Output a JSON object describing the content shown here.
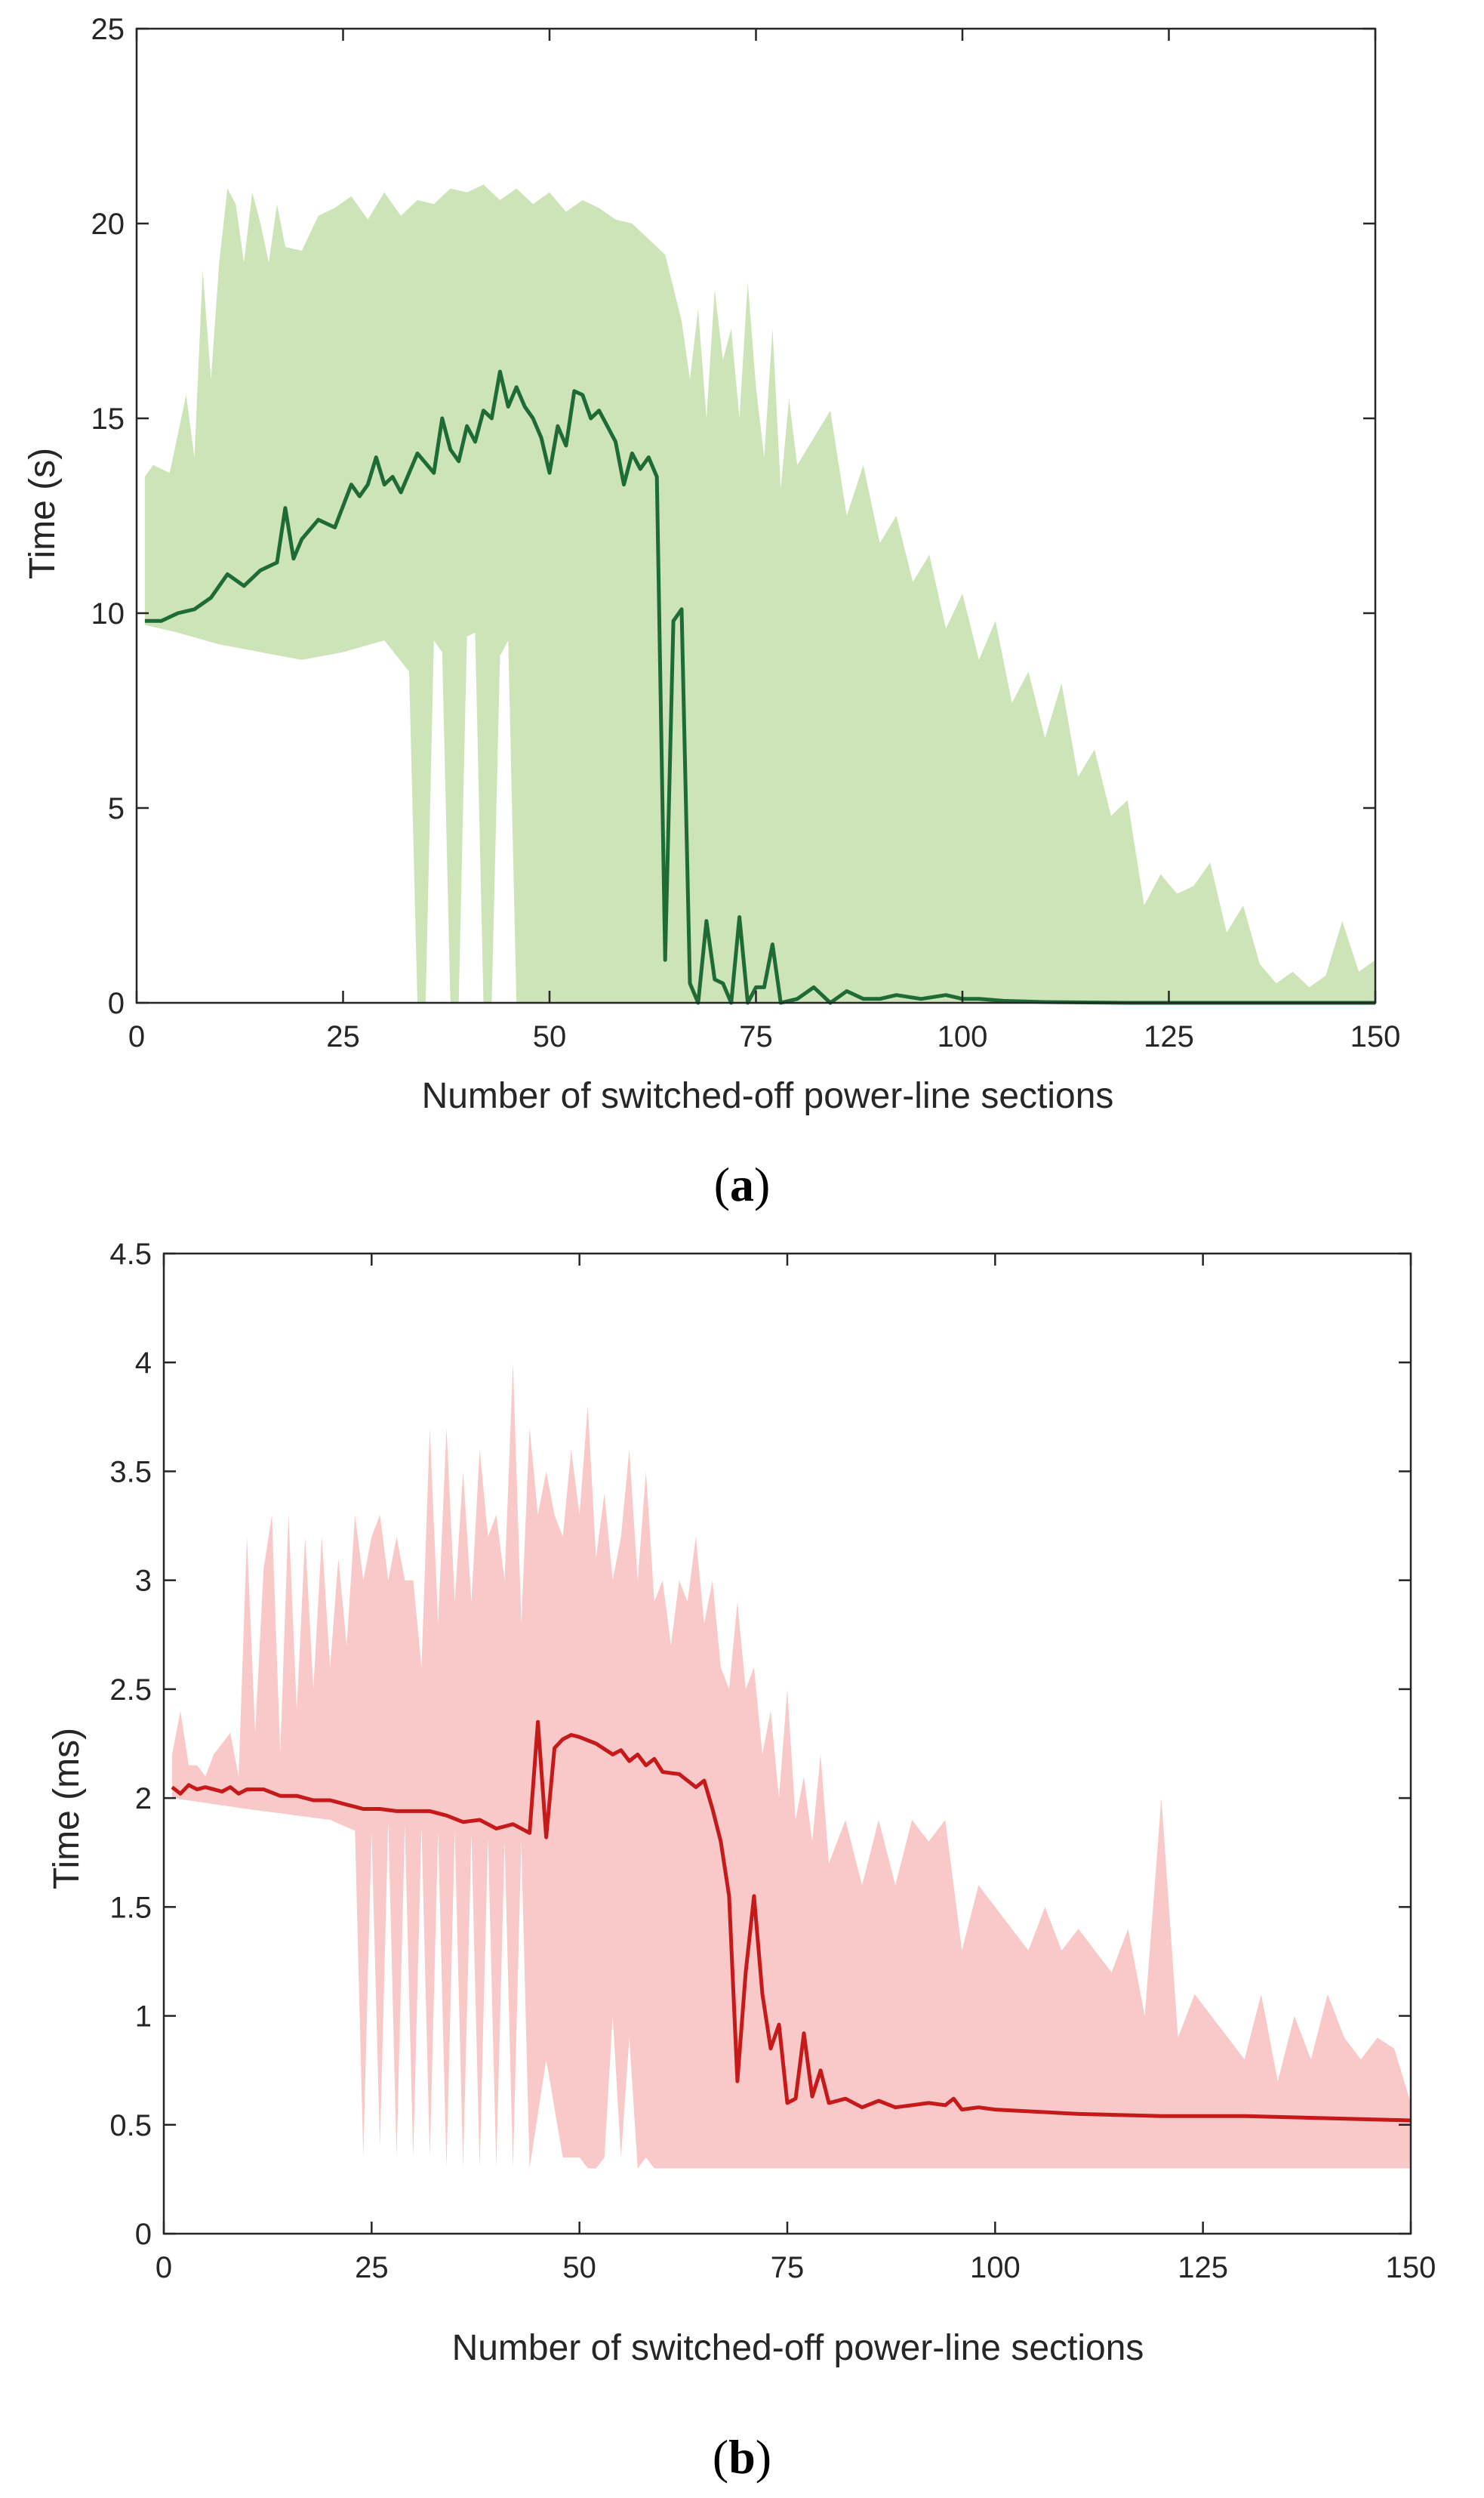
{
  "chart_data": [
    {
      "type": "area",
      "panel_label": "a",
      "xlabel": "Number of switched-off power-line sections",
      "ylabel": "Time (s)",
      "xlim": [
        0,
        150
      ],
      "ylim": [
        0,
        25
      ],
      "xticks": [
        0,
        25,
        50,
        75,
        100,
        125,
        150
      ],
      "yticks": [
        0,
        5,
        10,
        15,
        20,
        25
      ],
      "grid": false,
      "colors": {
        "band": "#cde3b8",
        "line": "#1e6b35"
      },
      "series": [
        {
          "name": "mean",
          "x": [
            1,
            3,
            5,
            7,
            9,
            11,
            13,
            15,
            17,
            18,
            19,
            20,
            22,
            24,
            26,
            27,
            28,
            29,
            30,
            31,
            32,
            34,
            36,
            37,
            38,
            39,
            40,
            41,
            42,
            43,
            44,
            45,
            46,
            47,
            48,
            49,
            50,
            51,
            52,
            53,
            54,
            55,
            56,
            57,
            58,
            59,
            60,
            61,
            62,
            63,
            64,
            65,
            66,
            67,
            68,
            69,
            70,
            71,
            72,
            73,
            74,
            75,
            76,
            77,
            78,
            80,
            82,
            84,
            86,
            88,
            90,
            92,
            95,
            98,
            100,
            102,
            105,
            110,
            120,
            130,
            140,
            150
          ],
          "values": [
            9.8,
            9.8,
            10.0,
            10.1,
            10.4,
            11.0,
            10.7,
            11.1,
            11.3,
            12.7,
            11.4,
            11.9,
            12.4,
            12.2,
            13.3,
            13.0,
            13.3,
            14.0,
            13.3,
            13.5,
            13.1,
            14.1,
            13.6,
            15.0,
            14.2,
            13.9,
            14.8,
            14.4,
            15.2,
            15.0,
            16.2,
            15.3,
            15.8,
            15.3,
            15.0,
            14.5,
            13.6,
            14.8,
            14.3,
            15.7,
            15.6,
            15.0,
            15.2,
            14.8,
            14.4,
            13.3,
            14.1,
            13.7,
            14.0,
            13.5,
            1.1,
            9.8,
            10.1,
            0.5,
            0.0,
            2.1,
            0.6,
            0.5,
            0.0,
            2.2,
            0.0,
            0.4,
            0.4,
            1.5,
            0.0,
            0.1,
            0.4,
            0.0,
            0.3,
            0.1,
            0.1,
            0.2,
            0.1,
            0.2,
            0.1,
            0.1,
            0.05,
            0.02,
            0.0,
            0.0,
            0.0,
            0.0
          ]
        },
        {
          "name": "upper",
          "x": [
            1,
            2,
            4,
            6,
            7,
            8,
            9,
            10,
            11,
            12,
            13,
            14,
            15,
            16,
            17,
            18,
            20,
            22,
            24,
            26,
            28,
            30,
            32,
            34,
            36,
            38,
            40,
            42,
            44,
            46,
            48,
            50,
            52,
            54,
            56,
            58,
            60,
            62,
            64,
            66,
            67,
            68,
            69,
            70,
            71,
            72,
            73,
            74,
            75,
            76,
            77,
            78,
            79,
            80,
            82,
            84,
            86,
            88,
            90,
            92,
            94,
            96,
            98,
            100,
            102,
            104,
            106,
            108,
            110,
            112,
            114,
            116,
            118,
            120,
            122,
            124,
            126,
            128,
            130,
            132,
            134,
            136,
            138,
            140,
            142,
            144,
            146,
            148,
            150
          ],
          "values": [
            13.5,
            13.8,
            13.6,
            15.6,
            14.0,
            18.8,
            16.0,
            19.0,
            20.9,
            20.5,
            19.0,
            20.8,
            20.0,
            19.0,
            20.5,
            19.4,
            19.3,
            20.2,
            20.4,
            20.7,
            20.1,
            20.8,
            20.2,
            20.6,
            20.5,
            20.9,
            20.8,
            21.0,
            20.6,
            20.9,
            20.5,
            20.8,
            20.3,
            20.6,
            20.4,
            20.1,
            20.0,
            19.6,
            19.2,
            17.5,
            16.0,
            17.8,
            15.0,
            18.3,
            16.5,
            17.3,
            15.0,
            18.5,
            15.8,
            14.0,
            17.3,
            13.2,
            15.5,
            13.8,
            14.5,
            15.2,
            12.5,
            13.8,
            11.8,
            12.5,
            10.8,
            11.5,
            9.6,
            10.5,
            8.8,
            9.8,
            7.7,
            8.5,
            6.8,
            8.2,
            5.8,
            6.5,
            4.8,
            5.2,
            2.5,
            3.3,
            2.8,
            3.0,
            3.6,
            1.8,
            2.5,
            1.0,
            0.5,
            0.8,
            0.4,
            0.7,
            2.1,
            0.8,
            1.1
          ]
        },
        {
          "name": "lower",
          "x": [
            1,
            5,
            10,
            15,
            20,
            25,
            30,
            33,
            34,
            35,
            36,
            37,
            38,
            39,
            40,
            41,
            42,
            43,
            44,
            45,
            46,
            47,
            150
          ],
          "values": [
            9.7,
            9.5,
            9.2,
            9.0,
            8.8,
            9.0,
            9.3,
            8.5,
            0.0,
            0.0,
            9.3,
            9.0,
            0.0,
            0.0,
            9.4,
            9.5,
            0.0,
            0.0,
            8.9,
            9.3,
            0.0,
            0.0,
            0.0
          ]
        }
      ]
    },
    {
      "type": "area",
      "panel_label": "b",
      "xlabel": "Number of switched-off power-line sections",
      "ylabel": "Time (ms)",
      "xlim": [
        0,
        150
      ],
      "ylim": [
        0,
        4.5
      ],
      "xticks": [
        0,
        25,
        50,
        75,
        100,
        125,
        150
      ],
      "yticks": [
        0,
        0.5,
        1,
        1.5,
        2,
        2.5,
        3,
        3.5,
        4,
        4.5
      ],
      "grid": false,
      "colors": {
        "band": "#f9c8c8",
        "line": "#c61a1a"
      },
      "series": [
        {
          "name": "mean",
          "x": [
            1,
            2,
            3,
            4,
            5,
            6,
            7,
            8,
            9,
            10,
            12,
            14,
            16,
            18,
            20,
            22,
            24,
            26,
            28,
            30,
            32,
            34,
            36,
            38,
            40,
            42,
            44,
            45,
            46,
            47,
            48,
            49,
            50,
            52,
            54,
            55,
            56,
            57,
            58,
            59,
            60,
            62,
            64,
            65,
            66,
            67,
            68,
            69,
            70,
            71,
            72,
            73,
            74,
            75,
            76,
            77,
            78,
            79,
            80,
            82,
            84,
            86,
            88,
            90,
            92,
            94,
            95,
            96,
            98,
            100,
            110,
            120,
            130,
            140,
            150
          ],
          "values": [
            2.05,
            2.02,
            2.06,
            2.04,
            2.05,
            2.04,
            2.03,
            2.05,
            2.02,
            2.04,
            2.04,
            2.01,
            2.01,
            1.99,
            1.99,
            1.97,
            1.95,
            1.95,
            1.94,
            1.94,
            1.94,
            1.92,
            1.89,
            1.9,
            1.86,
            1.88,
            1.84,
            2.35,
            1.82,
            2.23,
            2.27,
            2.29,
            2.28,
            2.25,
            2.2,
            2.22,
            2.17,
            2.2,
            2.15,
            2.18,
            2.12,
            2.11,
            2.05,
            2.08,
            1.95,
            1.8,
            1.55,
            0.7,
            1.2,
            1.55,
            1.1,
            0.85,
            0.96,
            0.6,
            0.62,
            0.92,
            0.63,
            0.75,
            0.6,
            0.62,
            0.58,
            0.61,
            0.58,
            0.59,
            0.6,
            0.59,
            0.62,
            0.57,
            0.58,
            0.57,
            0.55,
            0.54,
            0.54,
            0.53,
            0.52
          ]
        },
        {
          "name": "upper",
          "x": [
            1,
            2,
            3,
            4,
            5,
            6,
            8,
            9,
            10,
            11,
            12,
            13,
            14,
            15,
            16,
            17,
            18,
            19,
            20,
            21,
            22,
            23,
            24,
            25,
            26,
            27,
            28,
            29,
            30,
            31,
            32,
            33,
            34,
            35,
            36,
            37,
            38,
            39,
            40,
            41,
            42,
            43,
            44,
            45,
            46,
            47,
            48,
            49,
            50,
            51,
            52,
            53,
            54,
            55,
            56,
            57,
            58,
            59,
            60,
            61,
            62,
            63,
            64,
            65,
            66,
            67,
            68,
            69,
            70,
            71,
            72,
            73,
            74,
            75,
            76,
            77,
            78,
            79,
            80,
            82,
            84,
            86,
            88,
            90,
            92,
            94,
            96,
            98,
            100,
            102,
            104,
            106,
            108,
            110,
            112,
            114,
            116,
            118,
            120,
            122,
            124,
            126,
            128,
            130,
            132,
            134,
            136,
            138,
            140,
            142,
            144,
            146,
            148,
            150
          ],
          "values": [
            2.2,
            2.4,
            2.15,
            2.15,
            2.1,
            2.2,
            2.3,
            2.1,
            3.2,
            2.3,
            3.05,
            3.3,
            2.2,
            3.3,
            2.4,
            3.2,
            2.5,
            3.2,
            2.6,
            3.1,
            2.7,
            3.3,
            3.0,
            3.2,
            3.3,
            3.0,
            3.2,
            3.0,
            3.0,
            2.6,
            3.7,
            2.8,
            3.7,
            2.9,
            3.5,
            2.9,
            3.6,
            3.2,
            3.3,
            3.0,
            4.0,
            2.8,
            3.7,
            3.3,
            3.5,
            3.3,
            3.2,
            3.6,
            3.3,
            3.8,
            3.1,
            3.4,
            3.0,
            3.2,
            3.6,
            3.0,
            3.5,
            2.9,
            3.0,
            2.7,
            3.0,
            2.9,
            3.2,
            2.8,
            3.0,
            2.6,
            2.5,
            2.9,
            2.5,
            2.6,
            2.2,
            2.4,
            2.0,
            2.5,
            1.9,
            2.1,
            1.8,
            2.2,
            1.7,
            1.9,
            1.6,
            1.9,
            1.6,
            1.9,
            1.8,
            1.9,
            1.3,
            1.6,
            1.5,
            1.4,
            1.3,
            1.5,
            1.3,
            1.4,
            1.3,
            1.2,
            1.4,
            1.0,
            2.0,
            0.9,
            1.1,
            1.0,
            0.9,
            0.8,
            1.1,
            0.7,
            1.0,
            0.8,
            1.1,
            0.9,
            0.8,
            0.9,
            0.85,
            0.6
          ]
        },
        {
          "name": "lower",
          "x": [
            1,
            10,
            20,
            23,
            24,
            25,
            26,
            27,
            28,
            29,
            30,
            31,
            32,
            33,
            34,
            35,
            36,
            37,
            38,
            39,
            40,
            41,
            42,
            43,
            44,
            46,
            48,
            49,
            50,
            51,
            52,
            53,
            54,
            55,
            56,
            57,
            58,
            59,
            60,
            70,
            80,
            100,
            150
          ],
          "values": [
            2.0,
            1.95,
            1.9,
            1.85,
            0.35,
            1.85,
            0.4,
            1.9,
            0.35,
            1.88,
            0.35,
            1.87,
            0.35,
            1.85,
            0.3,
            1.85,
            0.3,
            1.84,
            0.3,
            1.82,
            0.3,
            1.8,
            0.3,
            1.8,
            0.3,
            0.8,
            0.35,
            0.35,
            0.35,
            0.3,
            0.3,
            0.35,
            1.0,
            0.35,
            0.9,
            0.3,
            0.35,
            0.3,
            0.3,
            0.3,
            0.3,
            0.3,
            0.3
          ]
        }
      ]
    }
  ]
}
